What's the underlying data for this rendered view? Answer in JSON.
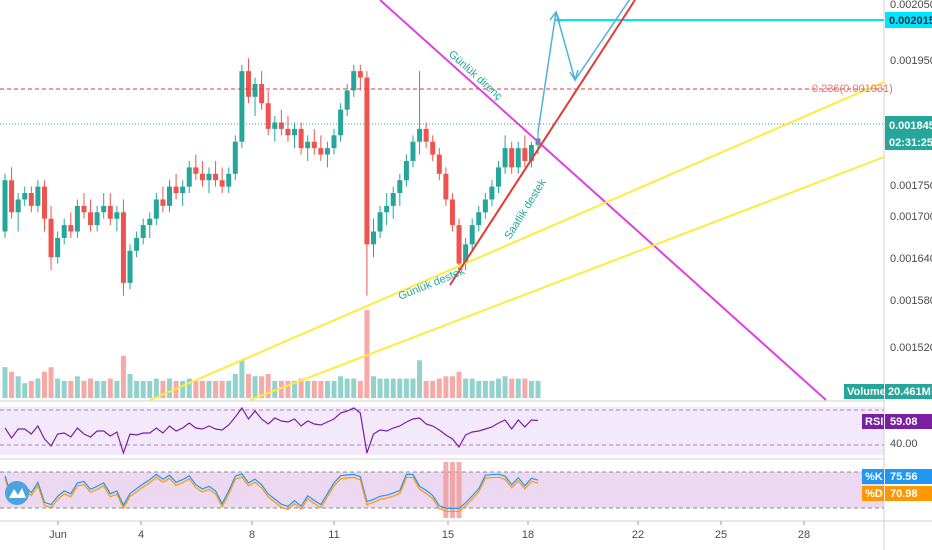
{
  "chart_data": {
    "type": "candlestick",
    "price_axis_ticks": [
      "0.002050",
      "0.001950",
      "0.001845",
      "0.001750",
      "0.001700",
      "0.001640",
      "0.001580",
      "0.001520"
    ],
    "time_axis_ticks": [
      "Jun",
      "4",
      "8",
      "11",
      "15",
      "18",
      "22",
      "25",
      "28"
    ],
    "candles": [
      [
        0.0017,
        0.00179,
        0.00169,
        0.00178
      ],
      [
        0.00178,
        0.0018,
        0.00172,
        0.00173
      ],
      [
        0.00173,
        0.00176,
        0.0017,
        0.00175
      ],
      [
        0.00175,
        0.00177,
        0.00174,
        0.00176
      ],
      [
        0.00176,
        0.00177,
        0.00173,
        0.00174
      ],
      [
        0.00174,
        0.00178,
        0.00173,
        0.00177
      ],
      [
        0.00177,
        0.00178,
        0.0017,
        0.00172
      ],
      [
        0.00172,
        0.00174,
        0.00164,
        0.00166
      ],
      [
        0.00166,
        0.0017,
        0.00165,
        0.00169
      ],
      [
        0.00169,
        0.00172,
        0.00168,
        0.00171
      ],
      [
        0.00171,
        0.00173,
        0.00169,
        0.0017
      ],
      [
        0.0017,
        0.00175,
        0.00169,
        0.00174
      ],
      [
        0.00174,
        0.00176,
        0.00172,
        0.00173
      ],
      [
        0.00173,
        0.00175,
        0.0017,
        0.00171
      ],
      [
        0.00171,
        0.00174,
        0.0017,
        0.00173
      ],
      [
        0.00173,
        0.00176,
        0.00172,
        0.00174
      ],
      [
        0.00174,
        0.00176,
        0.00171,
        0.00172
      ],
      [
        0.00172,
        0.00174,
        0.0017,
        0.00173
      ],
      [
        0.00173,
        0.00175,
        0.0016,
        0.00162
      ],
      [
        0.00162,
        0.00168,
        0.00161,
        0.00167
      ],
      [
        0.00167,
        0.0017,
        0.00166,
        0.00169
      ],
      [
        0.00169,
        0.00172,
        0.00168,
        0.00171
      ],
      [
        0.00171,
        0.00173,
        0.00169,
        0.00172
      ],
      [
        0.00172,
        0.00176,
        0.00171,
        0.00175
      ],
      [
        0.00175,
        0.00177,
        0.00173,
        0.00174
      ],
      [
        0.00174,
        0.00178,
        0.00173,
        0.00177
      ],
      [
        0.00177,
        0.00179,
        0.00175,
        0.00176
      ],
      [
        0.00176,
        0.00178,
        0.00174,
        0.00177
      ],
      [
        0.00177,
        0.00181,
        0.00176,
        0.0018
      ],
      [
        0.0018,
        0.00182,
        0.00178,
        0.00179
      ],
      [
        0.00179,
        0.00181,
        0.00177,
        0.00178
      ],
      [
        0.00178,
        0.0018,
        0.00176,
        0.00179
      ],
      [
        0.00179,
        0.00181,
        0.00177,
        0.00178
      ],
      [
        0.00178,
        0.0018,
        0.00176,
        0.00177
      ],
      [
        0.00177,
        0.0018,
        0.00176,
        0.00179
      ],
      [
        0.00179,
        0.00185,
        0.00178,
        0.00184
      ],
      [
        0.00184,
        0.00196,
        0.00183,
        0.00195
      ],
      [
        0.00195,
        0.00197,
        0.0019,
        0.00191
      ],
      [
        0.00191,
        0.00194,
        0.00188,
        0.00193
      ],
      [
        0.00193,
        0.00195,
        0.00189,
        0.0019
      ],
      [
        0.0019,
        0.00192,
        0.00185,
        0.00186
      ],
      [
        0.00186,
        0.00188,
        0.00184,
        0.00187
      ],
      [
        0.00187,
        0.00189,
        0.00185,
        0.00186
      ],
      [
        0.00186,
        0.00188,
        0.00184,
        0.00185
      ],
      [
        0.00185,
        0.00187,
        0.00183,
        0.00186
      ],
      [
        0.00186,
        0.00187,
        0.00182,
        0.00183
      ],
      [
        0.00183,
        0.00185,
        0.00181,
        0.00184
      ],
      [
        0.00184,
        0.00186,
        0.00182,
        0.00183
      ],
      [
        0.00183,
        0.00185,
        0.00181,
        0.00182
      ],
      [
        0.00182,
        0.00184,
        0.0018,
        0.00183
      ],
      [
        0.00183,
        0.00186,
        0.00182,
        0.00185
      ],
      [
        0.00185,
        0.0019,
        0.00184,
        0.00189
      ],
      [
        0.00189,
        0.00193,
        0.00188,
        0.00192
      ],
      [
        0.00192,
        0.00196,
        0.00191,
        0.00195
      ],
      [
        0.00195,
        0.00196,
        0.00192,
        0.00194
      ],
      [
        0.00194,
        0.00195,
        0.0016,
        0.00168
      ],
      [
        0.00168,
        0.00172,
        0.00166,
        0.0017
      ],
      [
        0.0017,
        0.00174,
        0.00169,
        0.00173
      ],
      [
        0.00173,
        0.00176,
        0.00171,
        0.00174
      ],
      [
        0.00174,
        0.00177,
        0.00172,
        0.00176
      ],
      [
        0.00176,
        0.00179,
        0.00174,
        0.00178
      ],
      [
        0.00178,
        0.00182,
        0.00177,
        0.00181
      ],
      [
        0.00181,
        0.00185,
        0.0018,
        0.00184
      ],
      [
        0.00184,
        0.00195,
        0.00182,
        0.00186
      ],
      [
        0.00186,
        0.00187,
        0.00183,
        0.00184
      ],
      [
        0.00184,
        0.00185,
        0.00181,
        0.00182
      ],
      [
        0.00182,
        0.00183,
        0.00178,
        0.00179
      ],
      [
        0.00179,
        0.0018,
        0.00174,
        0.00175
      ],
      [
        0.00175,
        0.00176,
        0.0017,
        0.00171
      ],
      [
        0.00171,
        0.00172,
        0.00164,
        0.00165
      ],
      [
        0.00165,
        0.00169,
        0.00164,
        0.00168
      ],
      [
        0.00168,
        0.00172,
        0.00167,
        0.00171
      ],
      [
        0.00171,
        0.00174,
        0.0017,
        0.00173
      ],
      [
        0.00173,
        0.00176,
        0.00172,
        0.00175
      ],
      [
        0.00175,
        0.00178,
        0.00174,
        0.00177
      ],
      [
        0.00177,
        0.00181,
        0.00176,
        0.0018
      ],
      [
        0.0018,
        0.00185,
        0.00179,
        0.00183
      ],
      [
        0.00183,
        0.00184,
        0.00179,
        0.0018
      ],
      [
        0.0018,
        0.00184,
        0.00179,
        0.00183
      ],
      [
        0.00183,
        0.00185,
        0.0018,
        0.00181
      ],
      [
        0.00181,
        0.00184,
        0.0018,
        0.001835
      ],
      [
        0.001835,
        0.00186,
        0.00182,
        0.001845
      ]
    ],
    "volume_label": "Volume",
    "volume_value": "20.461M",
    "last_price": "0.001845",
    "countdown": "02:31:25",
    "target_price": "0.002015",
    "fib_label": "0.236(0.001931)",
    "annotations": {
      "daily_resistance": "Günlük direnç",
      "hourly_support": "Saatlik destek",
      "daily_support": "Günlük destek"
    },
    "rsi": {
      "label": "RSI",
      "value": "59.08",
      "level": "40.00"
    },
    "stoch": {
      "k_label": "%K",
      "k_value": "75.56",
      "d_label": "%D",
      "d_value": "70.98"
    },
    "colors": {
      "up": "#26a69a",
      "down": "#ef5350",
      "magenta": "#e040e0",
      "yellow": "#ffeb3b",
      "red_line": "#e53935",
      "cyan": "#00e5ff",
      "fib": "#e53935",
      "rsi_line": "#7b1fa2",
      "k_line": "#2196f3",
      "d_line": "#ff9800"
    }
  }
}
